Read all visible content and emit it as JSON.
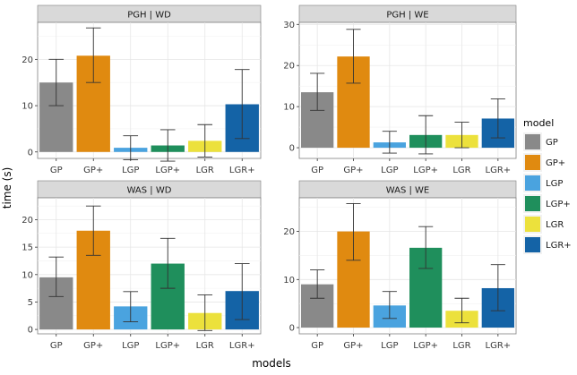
{
  "chart_data": {
    "type": "bar",
    "xlabel": "models",
    "ylabel": "time (s)",
    "categories": [
      "GP",
      "GP+",
      "LGP",
      "LGP+",
      "LGR",
      "LGR+"
    ],
    "legend": {
      "title": "model",
      "placement": "right",
      "entries": [
        "GP",
        "GP+",
        "LGP",
        "LGP+",
        "LGR",
        "LGR+"
      ]
    },
    "colors": {
      "GP": "#898989",
      "GP+": "#e08a10",
      "LGP": "#4aa3df",
      "LGP+": "#1f8f5c",
      "LGR": "#ece13c",
      "LGR+": "#1463a6"
    },
    "grid": true,
    "panels": [
      {
        "title": "PGH | WD",
        "ylim": [
          -1.4,
          28
        ],
        "yticks": [
          0,
          10,
          20
        ],
        "values": [
          15.0,
          20.8,
          0.9,
          1.4,
          2.4,
          10.3
        ],
        "error_low": [
          10.0,
          15.0,
          -1.7,
          -2.0,
          -1.1,
          2.9
        ],
        "error_high": [
          20.0,
          26.8,
          3.5,
          4.8,
          5.9,
          17.8
        ]
      },
      {
        "title": "PGH | WE",
        "ylim": [
          -2.6,
          30.5
        ],
        "yticks": [
          0,
          10,
          20,
          30
        ],
        "values": [
          13.5,
          22.2,
          1.3,
          3.1,
          3.1,
          7.1
        ],
        "error_low": [
          9.1,
          15.7,
          -1.3,
          -1.5,
          0.0,
          2.4
        ],
        "error_high": [
          18.1,
          28.8,
          4.0,
          7.8,
          6.2,
          11.9
        ]
      },
      {
        "title": "WAS | WD",
        "ylim": [
          -0.8,
          24
        ],
        "yticks": [
          0,
          5,
          10,
          15,
          20
        ],
        "values": [
          9.5,
          18.0,
          4.2,
          12.0,
          3.0,
          7.0
        ],
        "error_low": [
          6.0,
          13.5,
          1.4,
          7.5,
          -0.2,
          1.8
        ],
        "error_high": [
          13.2,
          22.5,
          6.9,
          16.6,
          6.3,
          12.0
        ]
      },
      {
        "title": "WAS | WE",
        "ylim": [
          -1.3,
          27
        ],
        "yticks": [
          0,
          10,
          20
        ],
        "values": [
          9.0,
          20.0,
          4.6,
          16.6,
          3.5,
          8.2
        ],
        "error_low": [
          6.1,
          14.0,
          1.9,
          12.3,
          1.0,
          3.5
        ],
        "error_high": [
          12.0,
          25.8,
          7.5,
          21.0,
          6.1,
          13.1
        ]
      }
    ]
  }
}
